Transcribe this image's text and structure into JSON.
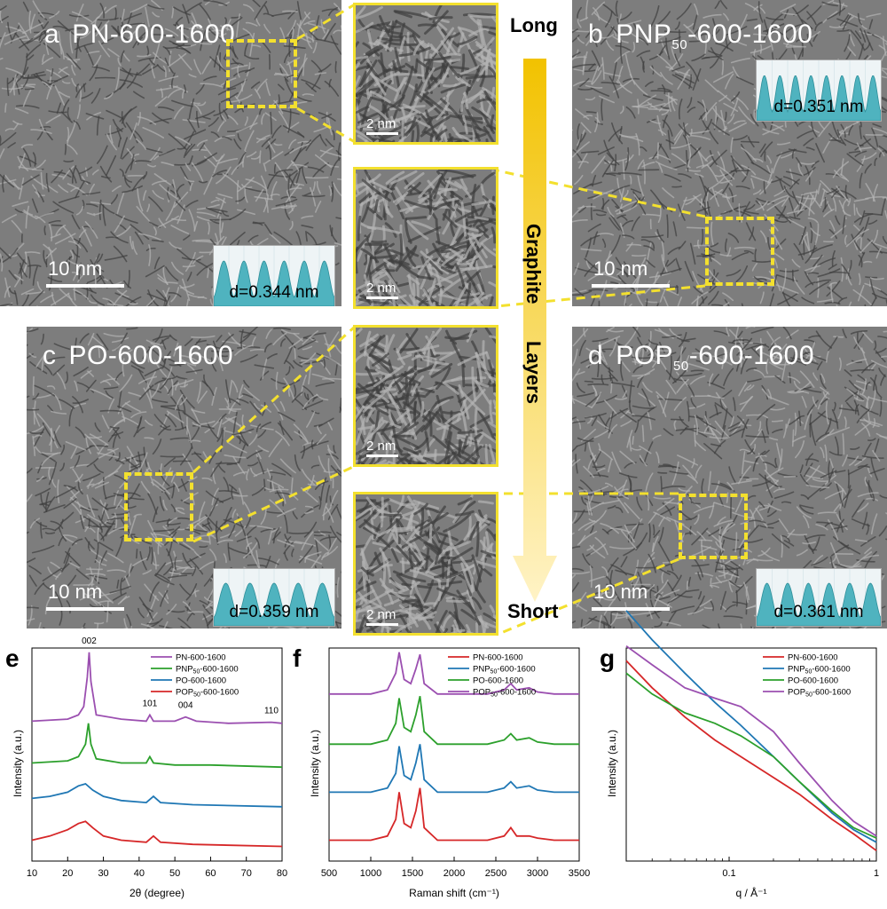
{
  "panels": {
    "a": {
      "letter": "a",
      "name": "PN-600-1600",
      "scale": "10 nm",
      "d": "d=0.344 nm"
    },
    "b": {
      "letter": "b",
      "name_prefix": "PNP",
      "name_sub": "50",
      "name_suffix": "-600-1600",
      "scale": "10 nm",
      "d": "d=0.351 nm"
    },
    "c": {
      "letter": "c",
      "name": "PO-600-1600",
      "scale": "10 nm",
      "d": "d=0.359 nm"
    },
    "d": {
      "letter": "d",
      "name_prefix": "POP",
      "name_sub": "50",
      "name_suffix": "-600-1600",
      "scale": "10 nm",
      "d": "d=0.361 nm"
    }
  },
  "zooms": {
    "scale": "2 nm"
  },
  "arrow": {
    "top": "Long",
    "bottom": "Short",
    "middle1": "Graphite",
    "middle2": "Layers",
    "gradient_top": "#f2c200",
    "gradient_bottom": "#fff3c6"
  },
  "colors": {
    "dashed": "#f3e02e",
    "pn": "#d62728",
    "pnp": "#1f77b4",
    "po": "#2ca02c",
    "pop": "#9b4fb0"
  },
  "chart_data": [
    {
      "panel": "e",
      "type": "line",
      "xlabel": "2θ (degree)",
      "ylabel": "Intensity (a.u.)",
      "xlim": [
        10,
        80
      ],
      "xticks": [
        10,
        20,
        30,
        40,
        50,
        60,
        70,
        80
      ],
      "annotations": [
        {
          "text": "002",
          "x": 26
        },
        {
          "text": "101",
          "x": 43
        },
        {
          "text": "004",
          "x": 53
        },
        {
          "text": "110",
          "x": 77
        }
      ],
      "legend": [
        "PN-600-1600",
        "PNP50-600-1600",
        "PO-600-1600",
        "POP50-600-1600"
      ],
      "legend_placement": "top-right",
      "series": [
        {
          "name": "PN-600-1600",
          "color": "#9b4fb0",
          "x": [
            10,
            20,
            23,
            24.5,
            25.5,
            26,
            26.5,
            28,
            35,
            42,
            43,
            44,
            50,
            53,
            56,
            65,
            77,
            80
          ],
          "y": [
            0.67,
            0.68,
            0.7,
            0.74,
            0.88,
            1.0,
            0.86,
            0.7,
            0.68,
            0.67,
            0.7,
            0.67,
            0.67,
            0.69,
            0.67,
            0.66,
            0.665,
            0.66
          ]
        },
        {
          "name": "PNP50-600-1600",
          "color": "#2ca02c",
          "x": [
            10,
            20,
            23,
            25,
            25.8,
            26.5,
            28,
            35,
            42,
            43,
            44,
            50,
            60,
            80
          ],
          "y": [
            0.47,
            0.48,
            0.5,
            0.56,
            0.66,
            0.56,
            0.49,
            0.47,
            0.47,
            0.5,
            0.47,
            0.46,
            0.46,
            0.45
          ]
        },
        {
          "name": "PO-600-1600",
          "color": "#1f77b4",
          "x": [
            10,
            15,
            20,
            23,
            25,
            27,
            30,
            35,
            42,
            44,
            46,
            55,
            80
          ],
          "y": [
            0.3,
            0.31,
            0.33,
            0.36,
            0.37,
            0.34,
            0.31,
            0.29,
            0.28,
            0.31,
            0.28,
            0.27,
            0.26
          ]
        },
        {
          "name": "POP50-600-1600",
          "color": "#d62728",
          "x": [
            10,
            15,
            20,
            23,
            25,
            27,
            30,
            35,
            42,
            44,
            46,
            55,
            80
          ],
          "y": [
            0.1,
            0.12,
            0.15,
            0.18,
            0.19,
            0.16,
            0.12,
            0.1,
            0.09,
            0.12,
            0.09,
            0.08,
            0.07
          ]
        }
      ]
    },
    {
      "panel": "f",
      "type": "line",
      "xlabel": "Raman shift (cm⁻¹)",
      "ylabel": "Intensity (a.u.)",
      "xlim": [
        500,
        3500
      ],
      "xticks": [
        500,
        1000,
        1500,
        2000,
        2500,
        3000,
        3500
      ],
      "legend": [
        "PN-600-1600",
        "PNP50-600-1600",
        "PO-600-1600",
        "POP50-600-1600"
      ],
      "legend_placement": "top-right",
      "series": [
        {
          "name": "PN-600-1600",
          "color": "#d62728",
          "x": [
            500,
            1000,
            1200,
            1300,
            1340,
            1400,
            1480,
            1540,
            1590,
            1640,
            1800,
            2400,
            2600,
            2680,
            2750,
            2900,
            3000,
            3200,
            3500
          ],
          "y": [
            0.1,
            0.1,
            0.12,
            0.2,
            0.33,
            0.18,
            0.16,
            0.24,
            0.35,
            0.16,
            0.1,
            0.1,
            0.12,
            0.16,
            0.12,
            0.12,
            0.11,
            0.1,
            0.1
          ]
        },
        {
          "name": "PNP50-600-1600",
          "color": "#1f77b4",
          "x": [
            500,
            1000,
            1200,
            1300,
            1340,
            1400,
            1480,
            1540,
            1590,
            1640,
            1800,
            2400,
            2600,
            2680,
            2750,
            2900,
            3000,
            3200,
            3500
          ],
          "y": [
            0.33,
            0.33,
            0.35,
            0.42,
            0.55,
            0.41,
            0.39,
            0.47,
            0.56,
            0.39,
            0.33,
            0.33,
            0.35,
            0.38,
            0.35,
            0.36,
            0.34,
            0.33,
            0.33
          ]
        },
        {
          "name": "PO-600-1600",
          "color": "#2ca02c",
          "x": [
            500,
            1000,
            1200,
            1300,
            1340,
            1400,
            1480,
            1540,
            1590,
            1640,
            1800,
            2400,
            2600,
            2680,
            2750,
            2900,
            3000,
            3200,
            3500
          ],
          "y": [
            0.56,
            0.56,
            0.58,
            0.66,
            0.78,
            0.64,
            0.62,
            0.7,
            0.79,
            0.62,
            0.56,
            0.56,
            0.58,
            0.61,
            0.58,
            0.59,
            0.57,
            0.56,
            0.56
          ]
        },
        {
          "name": "POP50-600-1600",
          "color": "#9b4fb0",
          "x": [
            500,
            1000,
            1200,
            1300,
            1340,
            1400,
            1480,
            1540,
            1590,
            1640,
            1800,
            2400,
            2600,
            2680,
            2750,
            2900,
            3000,
            3200,
            3500
          ],
          "y": [
            0.8,
            0.8,
            0.82,
            0.9,
            1.0,
            0.87,
            0.85,
            0.92,
            0.99,
            0.85,
            0.8,
            0.8,
            0.82,
            0.85,
            0.82,
            0.83,
            0.81,
            0.8,
            0.8
          ]
        }
      ]
    },
    {
      "panel": "g",
      "type": "line",
      "xlabel": "q / Å⁻¹",
      "ylabel": "Intensity (a.u.)",
      "xscale": "log",
      "xlim": [
        0.02,
        1
      ],
      "xticks": [
        0.1,
        1
      ],
      "xticklabels": [
        "0.1",
        "1"
      ],
      "legend": [
        "PN-600-1600",
        "PNP50-600-1600",
        "PO-600-1600",
        "POP50-600-1600"
      ],
      "legend_placement": "top-right",
      "series": [
        {
          "name": "PN-600-1600",
          "color": "#d62728",
          "x": [
            0.02,
            0.03,
            0.05,
            0.08,
            0.12,
            0.2,
            0.3,
            0.5,
            0.7,
            1.0
          ],
          "y": [
            0.96,
            0.83,
            0.69,
            0.58,
            0.5,
            0.4,
            0.32,
            0.2,
            0.13,
            0.05
          ]
        },
        {
          "name": "PNP50-600-1600",
          "color": "#1f77b4",
          "x": [
            0.02,
            0.03,
            0.05,
            0.08,
            0.12,
            0.2,
            0.3,
            0.5,
            0.7,
            1.0
          ],
          "y": [
            1.2,
            1.06,
            0.9,
            0.76,
            0.65,
            0.5,
            0.38,
            0.23,
            0.15,
            0.09
          ]
        },
        {
          "name": "PO-600-1600",
          "color": "#2ca02c",
          "x": [
            0.02,
            0.03,
            0.05,
            0.08,
            0.12,
            0.2,
            0.3,
            0.5,
            0.7,
            1.0
          ],
          "y": [
            0.9,
            0.8,
            0.71,
            0.66,
            0.6,
            0.5,
            0.38,
            0.24,
            0.16,
            0.11
          ]
        },
        {
          "name": "POP50-600-1600",
          "color": "#9b4fb0",
          "x": [
            0.02,
            0.03,
            0.05,
            0.08,
            0.12,
            0.2,
            0.3,
            0.5,
            0.7,
            1.0
          ],
          "y": [
            1.03,
            0.94,
            0.83,
            0.78,
            0.74,
            0.62,
            0.47,
            0.29,
            0.19,
            0.12
          ]
        }
      ]
    }
  ]
}
